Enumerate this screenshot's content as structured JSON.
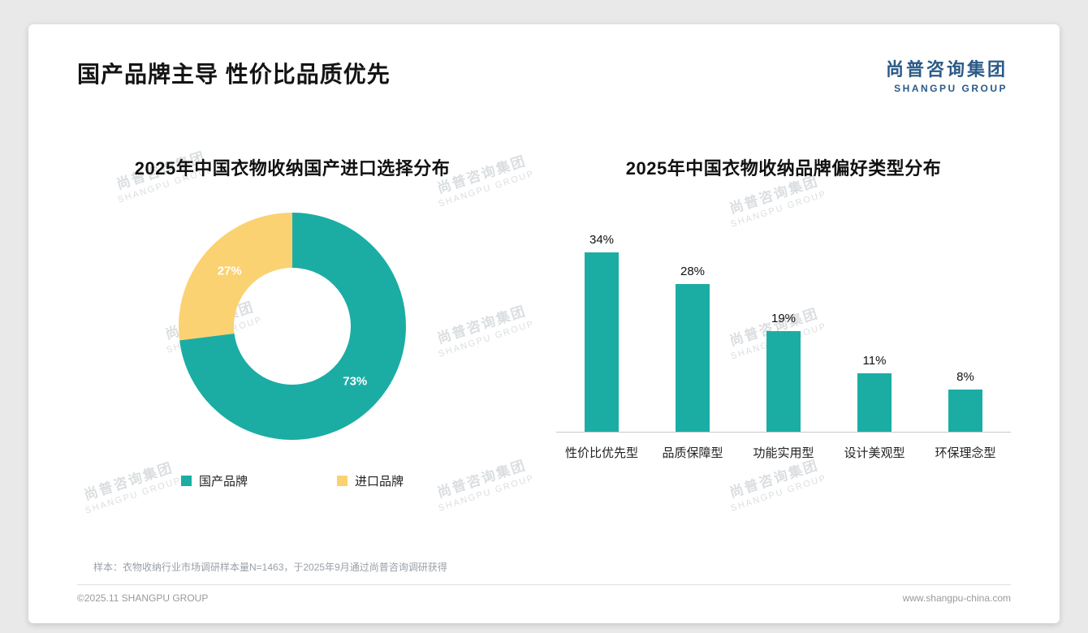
{
  "page": {
    "title": "国产品牌主导 性价比品质优先",
    "footer_note": "样本：衣物收纳行业市场调研样本量N=1463，于2025年9月通过尚普咨询调研获得",
    "copyright": "©2025.11 SHANGPU GROUP",
    "website": "www.shangpu-china.com"
  },
  "logo": {
    "cn": "尚普咨询集团",
    "en": "SHANGPU GROUP"
  },
  "watermark": {
    "cn": "尚普咨询集团",
    "en": "SHANGPU GROUP"
  },
  "colors": {
    "teal": "#1bada4",
    "yellow": "#fbd272",
    "logo_blue": "#2a5a88"
  },
  "chart_data": [
    {
      "type": "pie",
      "donut": true,
      "title": "2025年中国衣物收纳国产进口选择分布",
      "labels": [
        "国产品牌",
        "进口品牌"
      ],
      "values": [
        73,
        27
      ],
      "colors": [
        "#1bada4",
        "#fbd272"
      ],
      "value_suffix": "%",
      "legend_position": "bottom"
    },
    {
      "type": "bar",
      "title": "2025年中国衣物收纳品牌偏好类型分布",
      "categories": [
        "性价比优先型",
        "品质保障型",
        "功能实用型",
        "设计美观型",
        "环保理念型"
      ],
      "values": [
        34,
        28,
        19,
        11,
        8
      ],
      "bar_color": "#1bada4",
      "value_suffix": "%",
      "ylim": [
        0,
        40
      ],
      "grid": false
    }
  ]
}
